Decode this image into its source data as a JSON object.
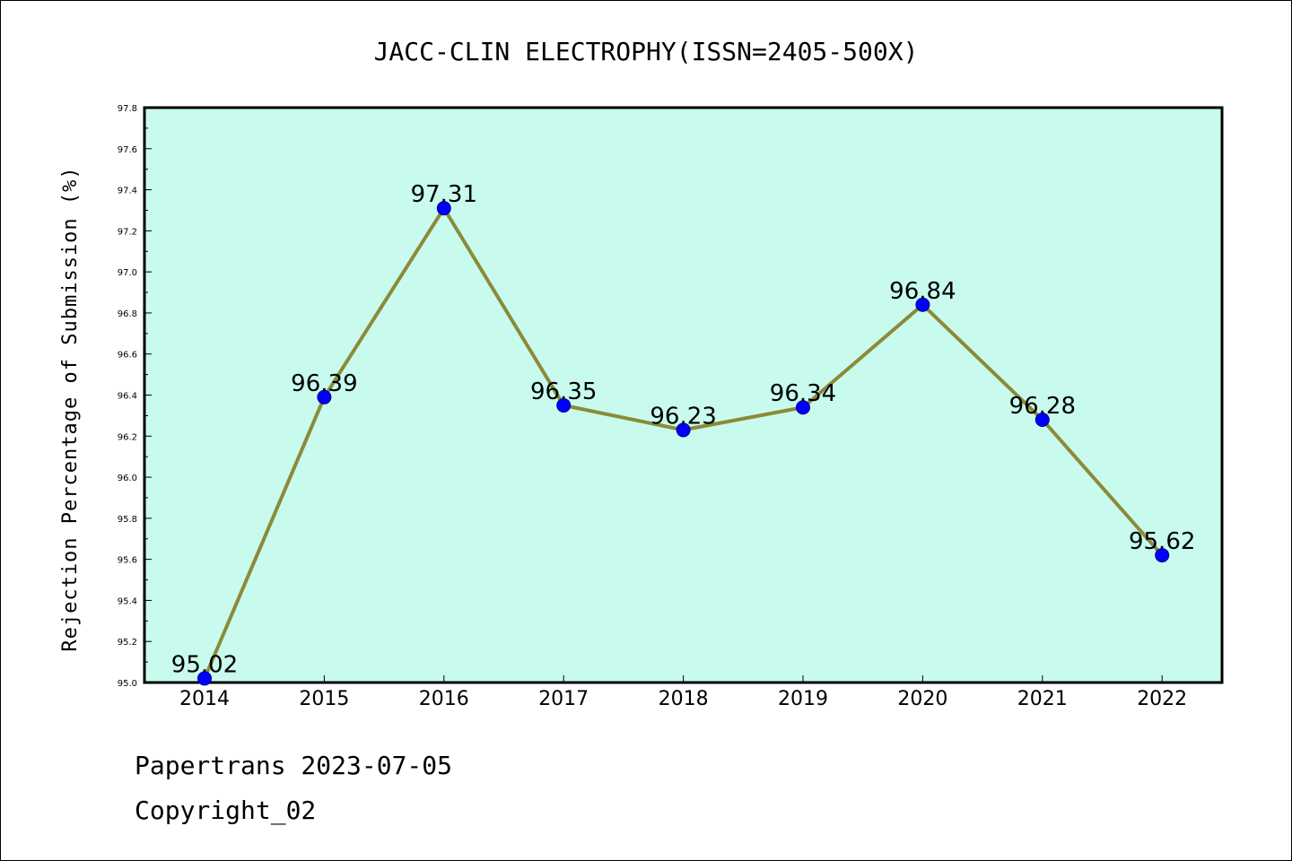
{
  "chart_data": {
    "type": "line",
    "title": "JACC-CLIN ELECTROPHY(ISSN=2405-500X)",
    "xlabel": "",
    "ylabel": "Rejection Percentage of Submission (%)",
    "categories": [
      "2014",
      "2015",
      "2016",
      "2017",
      "2018",
      "2019",
      "2020",
      "2021",
      "2022"
    ],
    "series": [
      {
        "values": [
          95.02,
          96.39,
          97.31,
          96.35,
          96.23,
          96.34,
          96.84,
          96.28,
          95.62
        ],
        "data_labels": [
          "95.02",
          "96.39",
          "97.31",
          "96.35",
          "96.23",
          "96.34",
          "96.84",
          "96.28",
          "95.62"
        ]
      }
    ],
    "ylim": [
      95.0,
      97.8
    ],
    "yticks": [
      "95.0",
      "95.2",
      "95.4",
      "95.6",
      "95.8",
      "96.0",
      "96.2",
      "96.4",
      "96.6",
      "96.8",
      "97.0",
      "97.2",
      "97.4",
      "97.6",
      "97.8"
    ],
    "grid": false,
    "legend": "none",
    "colors": {
      "plot_background": "#c8fbee",
      "line": "#8c8a38",
      "marker": "#0000ff",
      "axes": "#000000"
    }
  },
  "footer": {
    "line1": "Papertrans 2023-07-05",
    "line2": "Copyright_02"
  }
}
